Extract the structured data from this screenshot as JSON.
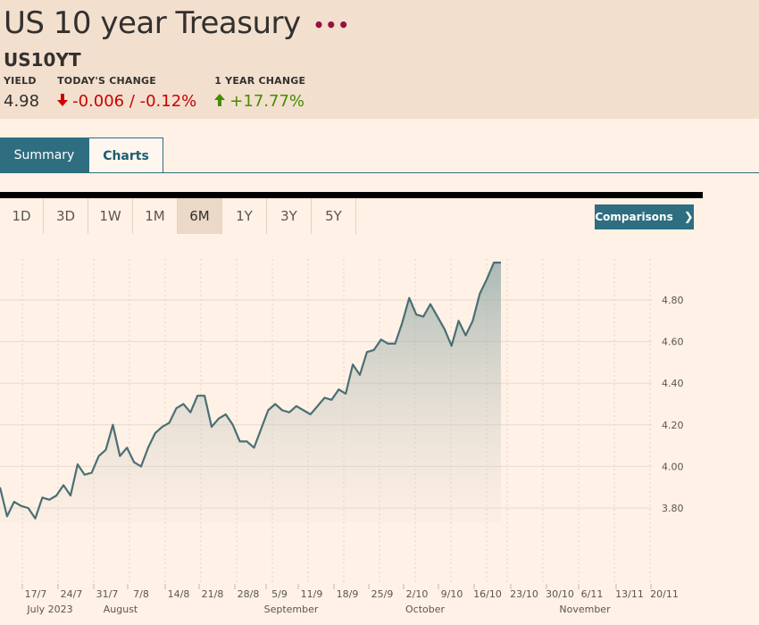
{
  "header": {
    "title": "US 10 year Treasury",
    "more_icon": "•••",
    "symbol": "US10YT",
    "yield_label": "YIELD",
    "yield_value": "4.98",
    "change_label": "TODAY'S CHANGE",
    "change_value": "-0.006 / -0.12%",
    "change_icon": "arrow-down",
    "year_label": "1 YEAR CHANGE",
    "year_value": "+17.77%",
    "year_icon": "arrow-up"
  },
  "tabs": {
    "summary": "Summary",
    "charts": "Charts"
  },
  "ranges": [
    "1D",
    "3D",
    "1W",
    "1M",
    "6M",
    "1Y",
    "3Y",
    "5Y"
  ],
  "active_range": "6M",
  "comparisons_label": "Comparisons",
  "colors": {
    "accent": "#2e6e80",
    "down": "#cc0000",
    "up": "#458b00",
    "line": "#4a6f75"
  },
  "chart_data": {
    "type": "area",
    "y_ticks": [
      "3.80",
      "4.00",
      "4.20",
      "4.40",
      "4.60",
      "4.80"
    ],
    "x_ticks": [
      "17/7",
      "24/7",
      "31/7",
      "7/8",
      "14/8",
      "21/8",
      "28/8",
      "5/9",
      "11/9",
      "18/9",
      "25/9",
      "2/10",
      "9/10",
      "16/10",
      "23/10",
      "30/10",
      "6/11",
      "13/11",
      "20/11"
    ],
    "month_labels": [
      "July 2023",
      "August",
      "September",
      "October",
      "November"
    ],
    "ylim": [
      3.6,
      4.95
    ],
    "grid": true,
    "series": [
      {
        "values": [
          3.9,
          3.76,
          3.83,
          3.81,
          3.8,
          3.75,
          3.85,
          3.84,
          3.86,
          3.91,
          3.86,
          4.01,
          3.96,
          3.97,
          4.05,
          4.08,
          4.2,
          4.05,
          4.09,
          4.02,
          4.0,
          4.09,
          4.16,
          4.19,
          4.21,
          4.28,
          4.3,
          4.26,
          4.34,
          4.34,
          4.19,
          4.23,
          4.25,
          4.2,
          4.12,
          4.12,
          4.09,
          4.18,
          4.27,
          4.3,
          4.27,
          4.26,
          4.29,
          4.27,
          4.25,
          4.29,
          4.33,
          4.32,
          4.37,
          4.35,
          4.49,
          4.44,
          4.55,
          4.56,
          4.61,
          4.59,
          4.59,
          4.69,
          4.81,
          4.73,
          4.72,
          4.78,
          4.72,
          4.66,
          4.58,
          4.7,
          4.63,
          4.7,
          4.83,
          4.9,
          4.98,
          4.98
        ]
      }
    ]
  }
}
